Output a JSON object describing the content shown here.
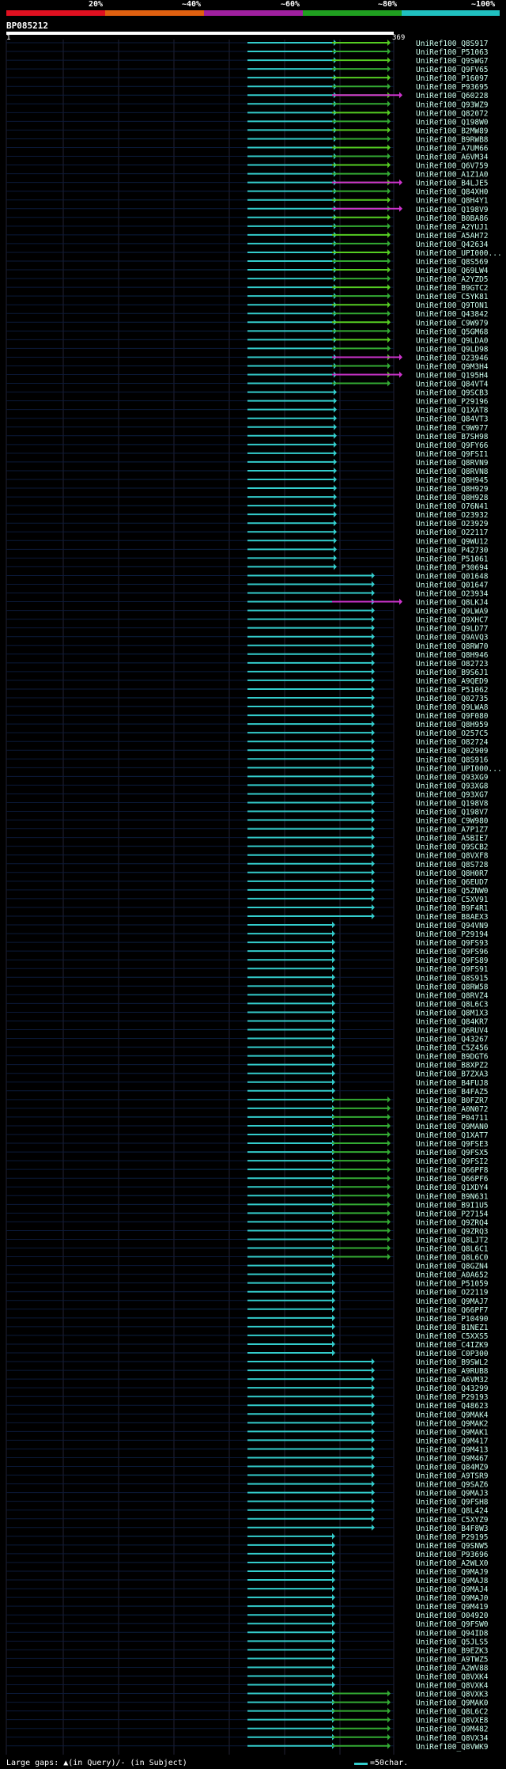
{
  "legend": {
    "labels": [
      "20%",
      "~40%",
      "~60%",
      "~80%",
      "~100%"
    ],
    "colors": [
      "#e01020",
      "#e06010",
      "#a020a0",
      "#20a020",
      "#20c0c0"
    ]
  },
  "query": {
    "id": "BP085212",
    "start": "1",
    "end": "369"
  },
  "footer": {
    "text": "Large gaps: ▲(in Query)/- (in Subject)",
    "scale": "=50char."
  },
  "hits": [
    "UniRef100_Q8S917",
    "UniRef100_P51063",
    "UniRef100_Q9SWG7",
    "UniRef100_Q9FV65",
    "UniRef100_P16097",
    "UniRef100_P93695",
    "UniRef100_Q60228",
    "UniRef100_Q93WZ9",
    "UniRef100_Q82072",
    "UniRef100_Q198W0",
    "UniRef100_B2MW89",
    "UniRef100_B9RWB8",
    "UniRef100_A7UM66",
    "UniRef100_A6VM34",
    "UniRef100_Q6V759",
    "UniRef100_A1Z1A0",
    "UniRef100_B4LJE5",
    "UniRef100_Q84XH0",
    "UniRef100_Q8H4Y1",
    "UniRef100_Q198V9",
    "UniRef100_B0BA86",
    "UniRef100_A2YUJ1",
    "UniRef100_A5AH72",
    "UniRef100_Q42634",
    "UniRef100_UPI000...",
    "UniRef100_Q8S569",
    "UniRef100_Q69LW4",
    "UniRef100_A2YZD5",
    "UniRef100_B9GTC2",
    "UniRef100_C5YK81",
    "UniRef100_Q9TON1",
    "UniRef100_Q43842",
    "UniRef100_C9W979",
    "UniRef100_Q5GM68",
    "UniRef100_Q9LDA0",
    "UniRef100_Q9LD98",
    "UniRef100_O23946",
    "UniRef100_Q9M3H4",
    "UniRef100_Q195H4",
    "UniRef100_Q84VT4",
    "UniRef100_Q9SCB3",
    "UniRef100_P29196",
    "UniRef100_Q1XAT8",
    "UniRef100_Q84VT3",
    "UniRef100_C9W977",
    "UniRef100_B7SH98",
    "UniRef100_Q9FY66",
    "UniRef100_Q9FSI1",
    "UniRef100_Q8RVN9",
    "UniRef100_Q8RVN8",
    "UniRef100_Q8H945",
    "UniRef100_Q8H929",
    "UniRef100_Q8H928",
    "UniRef100_O76N41",
    "UniRef100_O23932",
    "UniRef100_O23929",
    "UniRef100_O22117",
    "UniRef100_Q9WU12",
    "UniRef100_P42730",
    "UniRef100_P51061",
    "UniRef100_P30694",
    "UniRef100_Q01648",
    "UniRef100_Q01647",
    "UniRef100_O23934",
    "UniRef100_Q8LKJ4",
    "UniRef100_Q9LWA9",
    "UniRef100_Q9XHC7",
    "UniRef100_Q9LD77",
    "UniRef100_Q9AVQ3",
    "UniRef100_Q8RW70",
    "UniRef100_Q8H946",
    "UniRef100_O82723",
    "UniRef100_B9S6J1",
    "UniRef100_A9QED9",
    "UniRef100_P51062",
    "UniRef100_Q02735",
    "UniRef100_Q9LWA8",
    "UniRef100_Q9F080",
    "UniRef100_Q8H959",
    "UniRef100_O257C5",
    "UniRef100_O82724",
    "UniRef100_Q02909",
    "UniRef100_Q8S916",
    "UniRef100_UPI000...",
    "UniRef100_Q93XG9",
    "UniRef100_Q93XG8",
    "UniRef100_Q93XG7",
    "UniRef100_Q198V8",
    "UniRef100_Q198V7",
    "UniRef100_C9W980",
    "UniRef100_A7P1Z7",
    "UniRef100_A5BIE7",
    "UniRef100_Q9SCB2",
    "UniRef100_Q8VXF8",
    "UniRef100_Q8S728",
    "UniRef100_Q8H0R7",
    "UniRef100_Q6EUD7",
    "UniRef100_Q5ZNW0",
    "UniRef100_C5XV91",
    "UniRef100_B9F4R1",
    "UniRef100_B8AEX3",
    "UniRef100_Q94VN9",
    "UniRef100_P29194",
    "UniRef100_Q9FS93",
    "UniRef100_Q9FS96",
    "UniRef100_Q9FS89",
    "UniRef100_Q9FS91",
    "UniRef100_Q8S915",
    "UniRef100_Q8RW58",
    "UniRef100_Q8RVZ4",
    "UniRef100_Q8L6C3",
    "UniRef100_Q8M1X3",
    "UniRef100_Q84KR7",
    "UniRef100_Q6RUV4",
    "UniRef100_Q43267",
    "UniRef100_C5Z456",
    "UniRef100_B9DGT6",
    "UniRef100_B8XPZ2",
    "UniRef100_B7ZXA3",
    "UniRef100_B4FUJ8",
    "UniRef100_B4FAZ5",
    "UniRef100_B0FZR7",
    "UniRef100_A0N072",
    "UniRef100_P04711",
    "UniRef100_Q9MAN0",
    "UniRef100_Q1XAT7",
    "UniRef100_Q9FSE3",
    "UniRef100_Q9FSX5",
    "UniRef100_Q9FSI2",
    "UniRef100_Q66PF8",
    "UniRef100_Q66PF6",
    "UniRef100_Q1XDY4",
    "UniRef100_B9N631",
    "UniRef100_B9I1U5",
    "UniRef100_P27154",
    "UniRef100_Q9ZRQ4",
    "UniRef100_Q9ZRQ3",
    "UniRef100_Q8LJT2",
    "UniRef100_Q8L6C1",
    "UniRef100_Q8L6C0",
    "UniRef100_Q8GZN4",
    "UniRef100_A0A652",
    "UniRef100_P51059",
    "UniRef100_O22119",
    "UniRef100_Q9MAJ7",
    "UniRef100_Q66PF7",
    "UniRef100_P10490",
    "UniRef100_B1NEZ1",
    "UniRef100_C5XXS5",
    "UniRef100_C4IZK9",
    "UniRef100_C0P300",
    "UniRef100_B9SWL2",
    "UniRef100_A9RUB8",
    "UniRef100_A6VM32",
    "UniRef100_Q43299",
    "UniRef100_P29193",
    "UniRef100_Q48623",
    "UniRef100_Q9MAK4",
    "UniRef100_Q9MAK2",
    "UniRef100_Q9MAK1",
    "UniRef100_Q9M417",
    "UniRef100_Q9M413",
    "UniRef100_Q9M467",
    "UniRef100_Q84MZ9",
    "UniRef100_A9TSR9",
    "UniRef100_Q9SAZ6",
    "UniRef100_Q9MAJ3",
    "UniRef100_Q9FSH8",
    "UniRef100_Q8L424",
    "UniRef100_C5XYZ9",
    "UniRef100_B4F8W3",
    "UniRef100_P29195",
    "UniRef100_Q9SNW5",
    "UniRef100_P93696",
    "UniRef100_A2WLX0",
    "UniRef100_Q9MAJ9",
    "UniRef100_Q9MAJ8",
    "UniRef100_Q9MAJ4",
    "UniRef100_Q9MAJ0",
    "UniRef100_Q9M419",
    "UniRef100_O04920",
    "UniRef100_Q9FSW0",
    "UniRef100_Q94ID8",
    "UniRef100_Q5JLS5",
    "UniRef100_B9EZK3",
    "UniRef100_A9TWZ5",
    "UniRef100_A2WV88",
    "UniRef100_Q8VXK4",
    "UniRef100_Q8VXK4",
    "UniRef100_Q8VXK3",
    "UniRef100_Q9MAK0",
    "UniRef100_Q8L6C2",
    "UniRef100_Q8VXE8",
    "UniRef100_Q9M482",
    "UniRef100_Q8VX34",
    "UniRef100_Q8VWK9"
  ]
}
